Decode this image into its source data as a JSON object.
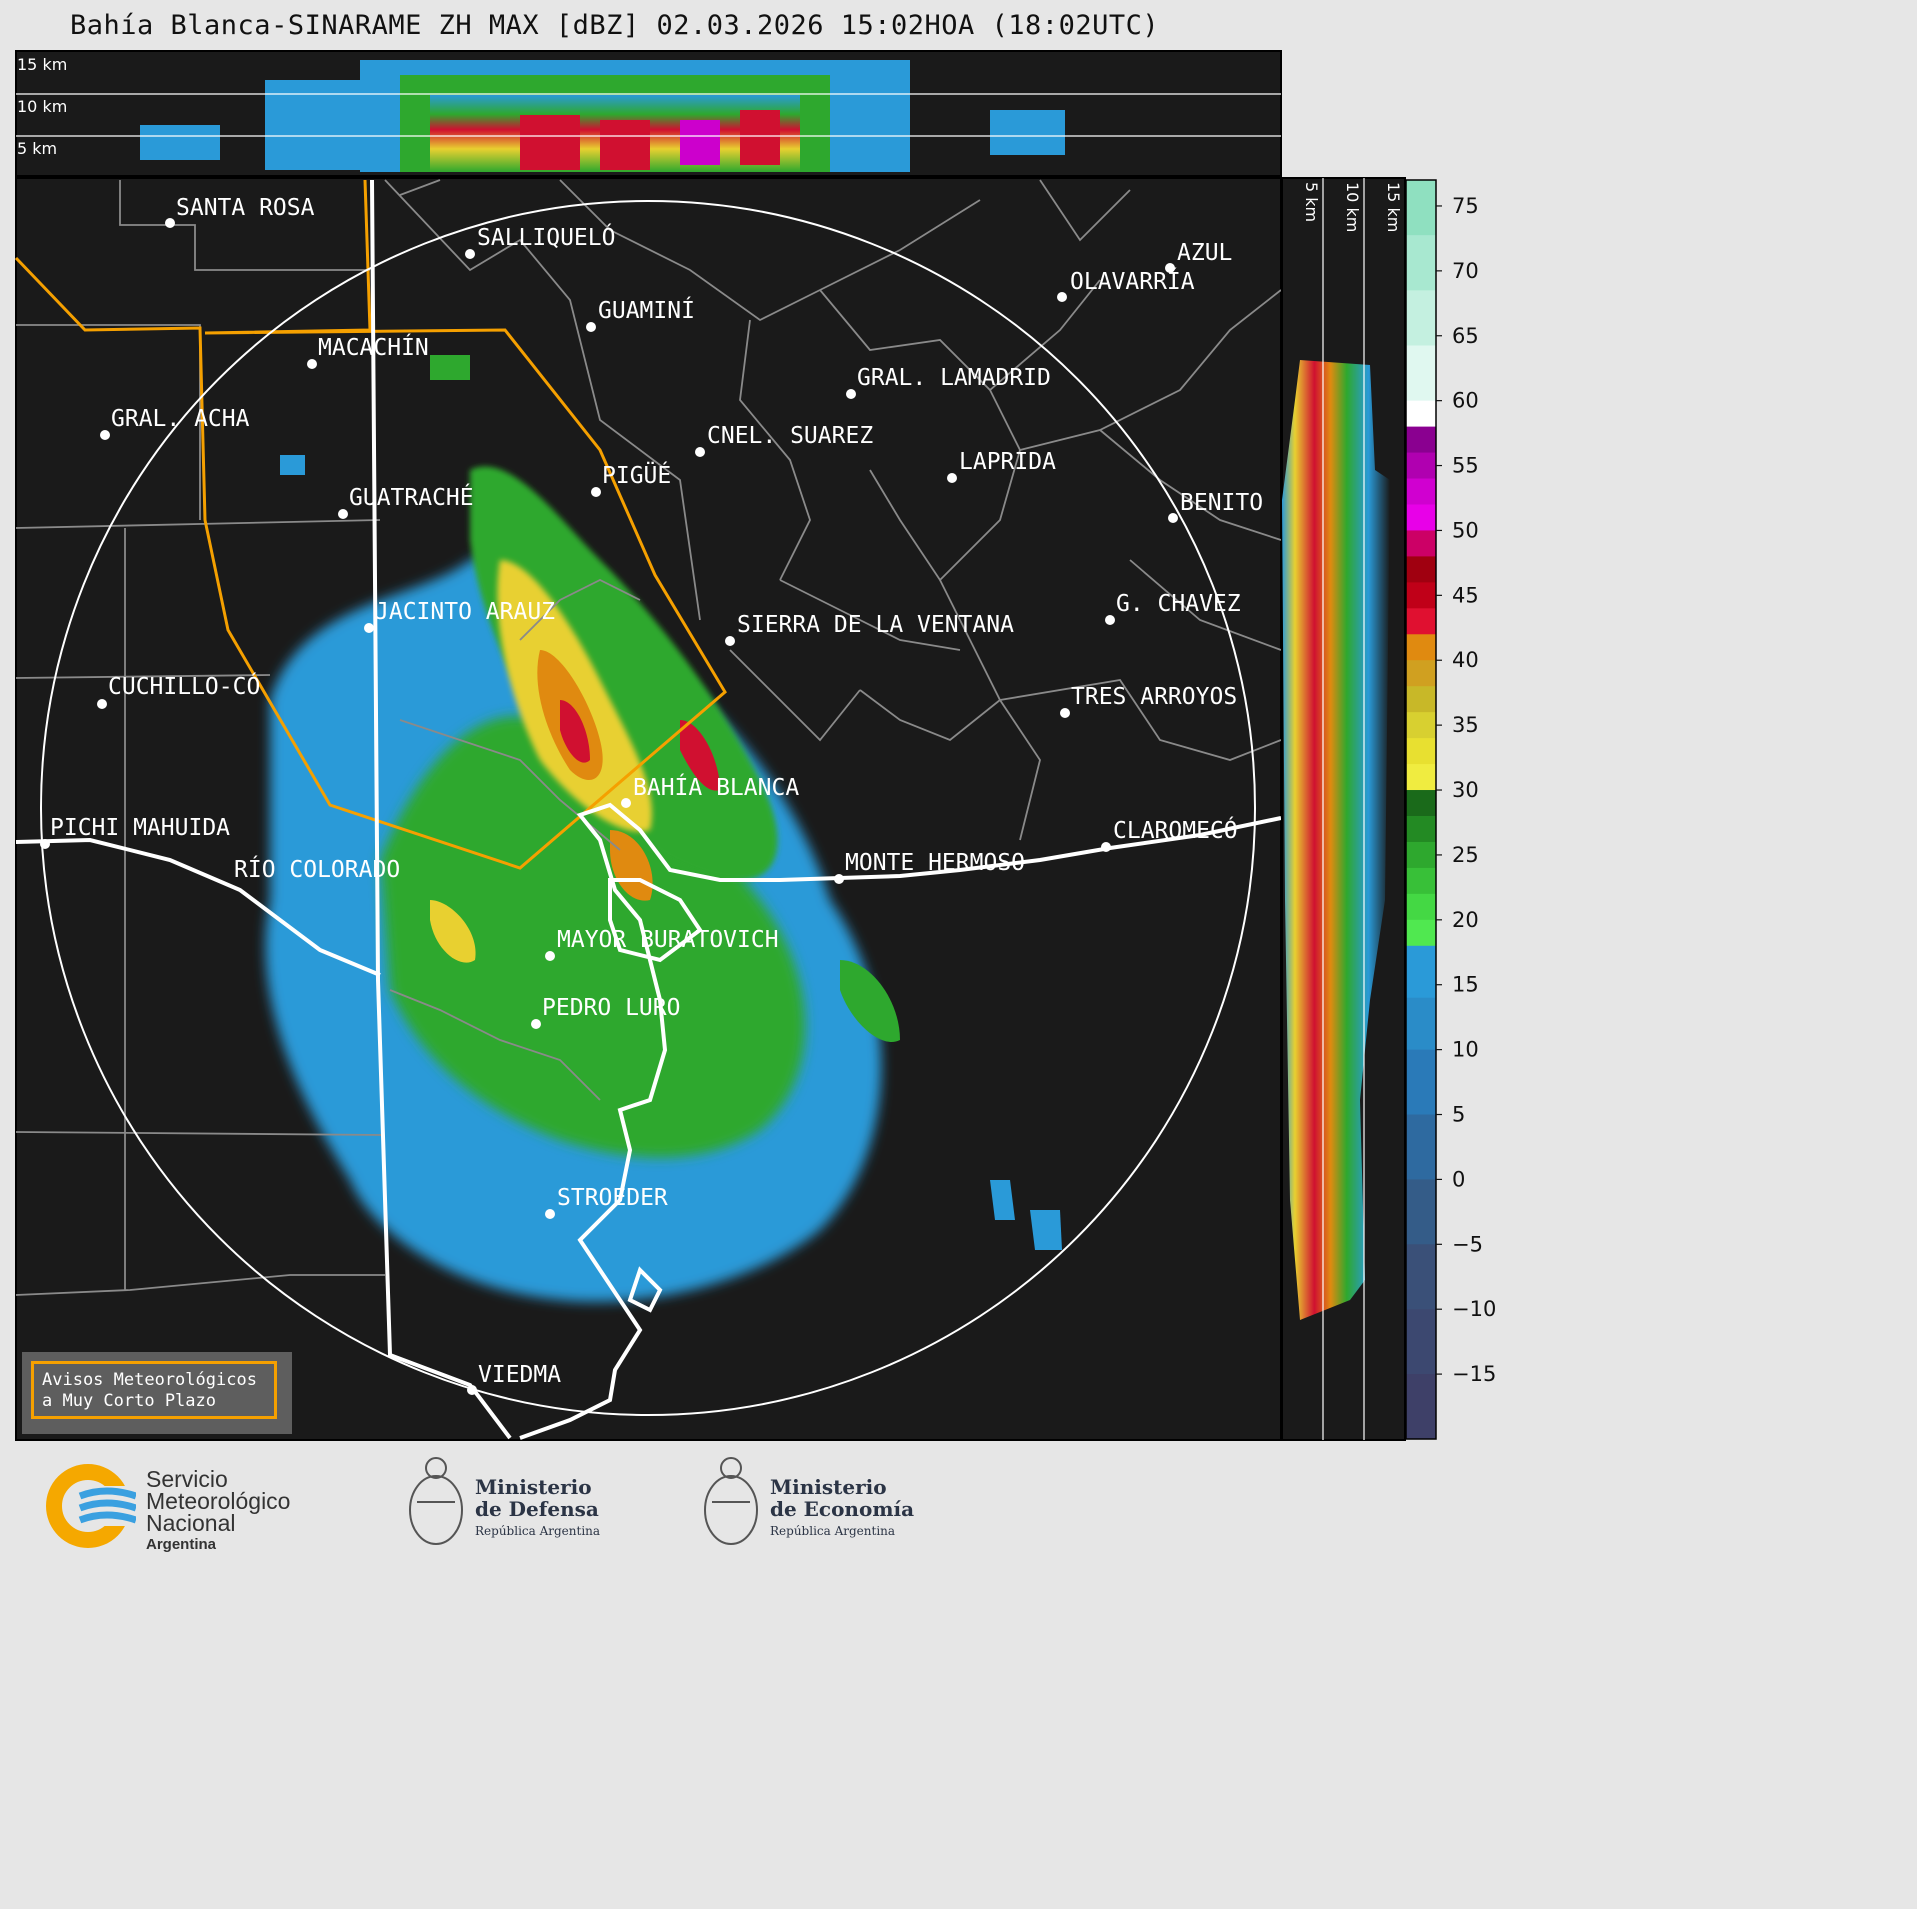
{
  "title": "Bahía Blanca-SINARAME ZH MAX [dBZ] 02.03.2026 15:02HOA (18:02UTC)",
  "top_panel": {
    "heights": [
      "15 km",
      "10 km",
      "5 km"
    ]
  },
  "side_panel": {
    "heights": [
      "5 km",
      "10 km",
      "15 km"
    ]
  },
  "colorbar": {
    "ticks": [
      "75",
      "70",
      "65",
      "60",
      "55",
      "50",
      "45",
      "40",
      "35",
      "30",
      "25",
      "20",
      "15",
      "10",
      "5",
      "0",
      "−5",
      "−10",
      "−15"
    ],
    "colors": {
      "light_green": "#8fe0c0",
      "white": "#ffffff",
      "magenta": "#cc00cc",
      "red": "#d00020",
      "orange": "#e08a10",
      "yellow": "#e8e030",
      "green": "#2ea82e",
      "blue": "#2a9ad8",
      "dark_blue": "#334466"
    }
  },
  "cities": {
    "santa_rosa": "SANTA ROSA",
    "salliquelo": "SALLIQUELÓ",
    "azul": "AZUL",
    "olavarria": "OLAVARRÍA",
    "guamini": "GUAMINÍ",
    "macachin": "MACACHÍN",
    "gral_lamadrid": "GRAL. LAMADRID",
    "gral_acha": "GRAL. ACHA",
    "cnel_suarez": "CNEL. SUAREZ",
    "laprida": "LAPRIDA",
    "pigue": "PIGÜÉ",
    "guatrache": "GUATRACHÉ",
    "benito": "BENITO",
    "g_chavez": "G. CHAVEZ",
    "jacinto_arauz": "JACINTO ARAUZ",
    "sierra_ventana": "SIERRA DE LA VENTANA",
    "cuchillo_co": "CUCHILLO-CÓ",
    "tres_arroyos": "TRES ARROYOS",
    "bahia_blanca": "BAHÍA BLANCA",
    "pichi_mahuida": "PICHI MAHUIDA",
    "claromeco": "CLAROMECÓ",
    "monte_hermoso": "MONTE HERMOSO",
    "rio_colorado": "RÍO COLORADO",
    "mayor_buratovich": "MAYOR BURATOVICH",
    "pedro_luro": "PEDRO LURO",
    "stroeder": "STROEDER",
    "viedma": "VIEDMA"
  },
  "warning_box": {
    "line1": "Avisos Meteorológicos",
    "line2": "a Muy Corto Plazo"
  },
  "footer": {
    "smn_line1": "Servicio",
    "smn_line2": "Meteorológico",
    "smn_line3": "Nacional",
    "smn_country": "Argentina",
    "defensa_line1": "Ministerio",
    "defensa_line2": "de Defensa",
    "defensa_sub": "República Argentina",
    "economia_line1": "Ministerio",
    "economia_line2": "de Economía",
    "economia_sub": "República Argentina"
  }
}
